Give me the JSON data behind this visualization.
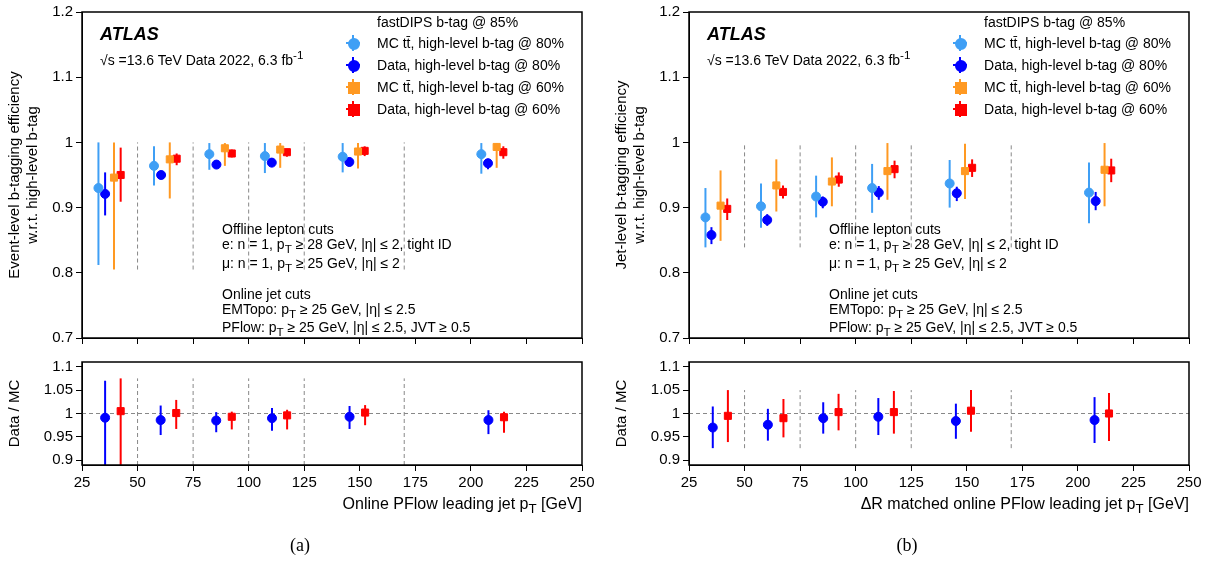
{
  "chart_data": [
    {
      "type": "scatter",
      "ylabel": "Event-level b-tagging efficiency\nw.r.t. high-level b-tag",
      "legend_title": "fastDIPS b-tag @ 85%",
      "legend": "top right",
      "grid": false,
      "tick_labels": "y",
      "xlim": [
        25,
        250
      ],
      "xticks": [
        25,
        50,
        75,
        100,
        125,
        150,
        175,
        200,
        225,
        250
      ],
      "ylim": [
        0.7,
        1.2
      ],
      "yticks": [
        0.7,
        0.8,
        0.9,
        1,
        1.1,
        1.2
      ],
      "annotations": [
        "ATLAS",
        "√s =13.6 TeV Data 2022, 6.3 fb$^{-1}$",
        "Offline lepton cuts",
        "e: n = 1, p$_{T}$ ≥ 28 GeV, |η| ≤ 2, tight ID",
        "μ: n = 1, p$_{T}$ ≥ 25 GeV, |η| ≤ 2",
        "Online jet cuts",
        "EMTopo: p$_{T}$ ≥ 25 GeV, |η| ≤ 2.5",
        "PFlow: p$_{T}$ ≥ 25 GeV, |η| ≤ 2.5, JVT ≥ 0.5"
      ],
      "ref_lines": [
        {
          "axis": "x",
          "value": 50,
          "line_style": "dashed",
          "color": "#888888"
        },
        {
          "axis": "x",
          "value": 75,
          "line_style": "dashed",
          "color": "#888888"
        },
        {
          "axis": "x",
          "value": 100,
          "line_style": "dashed",
          "color": "#888888"
        },
        {
          "axis": "x",
          "value": 125,
          "line_style": "dashed",
          "color": "#888888"
        },
        {
          "axis": "x",
          "value": 170,
          "line_style": "dashed",
          "color": "#888888"
        }
      ],
      "series": [
        {
          "name": "MC tt̄, high-level b-tag @ 80%",
          "color": "#3f9ff5",
          "marker": "circle",
          "x": [
            32.4,
            57.4,
            82.3,
            107.3,
            142.3,
            204.7
          ],
          "values": [
            0.93,
            0.964,
            0.982,
            0.979,
            0.978,
            0.982
          ],
          "errors": [
            [
              0.812,
              1.0
            ],
            [
              0.934,
              0.994
            ],
            [
              0.958,
              0.999
            ],
            [
              0.953,
              0.999
            ],
            [
              0.954,
              0.999
            ],
            [
              0.952,
              0.999
            ]
          ]
        },
        {
          "name": "Data, high-level b-tag @ 80%",
          "color": "#0000ff",
          "marker": "circle",
          "x": [
            35.4,
            60.6,
            85.5,
            110.4,
            145.3,
            207.7
          ],
          "values": [
            0.921,
            0.95,
            0.966,
            0.969,
            0.97,
            0.968
          ],
          "errors": [
            [
              0.888,
              0.954
            ],
            [
              0.944,
              0.955
            ],
            [
              0.961,
              0.971
            ],
            [
              0.962,
              0.975
            ],
            [
              0.963,
              0.977
            ],
            [
              0.959,
              0.975
            ]
          ]
        },
        {
          "name": "MC tt̄, high-level b-tag @ 60%",
          "color": "#ff9922",
          "marker": "square",
          "x": [
            39.4,
            64.5,
            89.3,
            114.2,
            149.2,
            211.6
          ],
          "values": [
            0.946,
            0.974,
            0.991,
            0.989,
            0.986,
            0.993
          ],
          "errors": [
            [
              0.805,
              1.0
            ],
            [
              0.914,
              1.0
            ],
            [
              0.964,
              0.999
            ],
            [
              0.961,
              0.999
            ],
            [
              0.96,
              0.999
            ],
            [
              0.961,
              0.999
            ]
          ]
        },
        {
          "name": "Data, high-level b-tag @ 60%",
          "color": "#ff0000",
          "marker": "square",
          "x": [
            42.4,
            67.6,
            92.4,
            117.2,
            152.2,
            214.6
          ],
          "values": [
            0.95,
            0.975,
            0.983,
            0.985,
            0.987,
            0.985
          ],
          "errors": [
            [
              0.909,
              0.992
            ],
            [
              0.965,
              0.983
            ],
            [
              0.977,
              0.989
            ],
            [
              0.978,
              0.99
            ],
            [
              0.979,
              0.994
            ],
            [
              0.975,
              0.994
            ]
          ]
        }
      ]
    },
    {
      "type": "scatter",
      "ylabel": "Data / MC",
      "xlabel": "Online PFlow leading jet p$_{T}$ [GeV]",
      "grid": false,
      "annotations": [
        "(a)"
      ],
      "xlim": [
        25,
        250
      ],
      "xticks": [
        25,
        50,
        75,
        100,
        125,
        150,
        175,
        200,
        225,
        250
      ],
      "ylim": [
        0.89,
        1.11
      ],
      "yticks": [
        0.9,
        0.95,
        1,
        1.05,
        1.1
      ],
      "ref_lines": [
        {
          "axis": "y",
          "value": 1,
          "line_style": "dashed",
          "color": "#888888"
        },
        {
          "axis": "x",
          "value": 50,
          "line_style": "dashed",
          "color": "#888888"
        },
        {
          "axis": "x",
          "value": 75,
          "line_style": "dashed",
          "color": "#888888"
        },
        {
          "axis": "x",
          "value": 100,
          "line_style": "dashed",
          "color": "#888888"
        },
        {
          "axis": "x",
          "value": 125,
          "line_style": "dashed",
          "color": "#888888"
        },
        {
          "axis": "x",
          "value": 170,
          "line_style": "dashed",
          "color": "#888888"
        }
      ],
      "series": [
        {
          "color": "#0000ff",
          "marker": "circle",
          "x": [
            35.4,
            60.4,
            85.4,
            110.5,
            145.4,
            207.9
          ],
          "values": [
            0.991,
            0.986,
            0.985,
            0.99,
            0.993,
            0.986
          ],
          "errors": [
            [
              0.89,
              1.07
            ],
            [
              0.954,
              1.017
            ],
            [
              0.96,
              1.003
            ],
            [
              0.963,
              1.012
            ],
            [
              0.967,
              1.016
            ],
            [
              0.956,
              1.007
            ]
          ]
        },
        {
          "color": "#ff0000",
          "marker": "square",
          "x": [
            42.4,
            67.4,
            92.4,
            117.3,
            152.4,
            214.9
          ],
          "values": [
            1.005,
            1.001,
            0.993,
            0.996,
            1.002,
            0.992
          ],
          "errors": [
            [
              0.89,
              1.075
            ],
            [
              0.967,
              1.029
            ],
            [
              0.966,
              1.004
            ],
            [
              0.966,
              1.008
            ],
            [
              0.975,
              1.018
            ],
            [
              0.959,
              1.004
            ]
          ]
        }
      ]
    },
    {
      "type": "scatter",
      "ylabel": "Jet-level b-tagging efficiency\nw.r.t. high-level b-tag",
      "legend_title": "fastDIPS b-tag @ 85%",
      "legend": "top right",
      "grid": false,
      "tick_labels": "y",
      "xlim": [
        25,
        250
      ],
      "xticks": [
        25,
        50,
        75,
        100,
        125,
        150,
        175,
        200,
        225,
        250
      ],
      "ylim": [
        0.7,
        1.2
      ],
      "yticks": [
        0.7,
        0.8,
        0.9,
        1,
        1.1,
        1.2
      ],
      "annotations": [
        "ATLAS",
        "√s =13.6 TeV Data 2022, 6.3 fb$^{-1}$",
        "Offline lepton cuts",
        "e: n = 1, p$_{T}$ ≥ 28 GeV, |η| ≤ 2, tight ID",
        "μ: n = 1, p$_{T}$ ≥ 25 GeV, |η| ≤ 2",
        "Online jet cuts",
        "EMTopo: p$_{T}$ ≥ 25 GeV, |η| ≤ 2.5",
        "PFlow: p$_{T}$ ≥ 25 GeV, |η| ≤ 2.5, JVT ≥ 0.5"
      ],
      "ref_lines": [
        {
          "axis": "x",
          "value": 50,
          "line_style": "dashed",
          "color": "#888888"
        },
        {
          "axis": "x",
          "value": 75,
          "line_style": "dashed",
          "color": "#888888"
        },
        {
          "axis": "x",
          "value": 100,
          "line_style": "dashed",
          "color": "#888888"
        },
        {
          "axis": "x",
          "value": 125,
          "line_style": "dashed",
          "color": "#888888"
        },
        {
          "axis": "x",
          "value": 170,
          "line_style": "dashed",
          "color": "#888888"
        }
      ],
      "series": [
        {
          "name": "MC tt̄, high-level b-tag @ 80%",
          "color": "#3f9ff5",
          "marker": "circle",
          "x": [
            32.4,
            57.4,
            82.2,
            107.4,
            142.3,
            205.0
          ],
          "values": [
            0.885,
            0.902,
            0.917,
            0.93,
            0.937,
            0.923
          ],
          "errors": [
            [
              0.839,
              0.93
            ],
            [
              0.869,
              0.937
            ],
            [
              0.885,
              0.949
            ],
            [
              0.892,
              0.967
            ],
            [
              0.9,
              0.973
            ],
            [
              0.876,
              0.969
            ]
          ]
        },
        {
          "name": "Data, high-level b-tag @ 80%",
          "color": "#0000ff",
          "marker": "circle",
          "x": [
            35.1,
            60.2,
            85.2,
            110.4,
            145.5,
            208.0
          ],
          "values": [
            0.858,
            0.881,
            0.909,
            0.923,
            0.922,
            0.91
          ],
          "errors": [
            [
              0.844,
              0.87
            ],
            [
              0.872,
              0.89
            ],
            [
              0.899,
              0.917
            ],
            [
              0.912,
              0.933
            ],
            [
              0.91,
              0.932
            ],
            [
              0.896,
              0.924
            ]
          ]
        },
        {
          "name": "MC tt̄, high-level b-tag @ 60%",
          "color": "#ff9922",
          "marker": "square",
          "x": [
            39.2,
            64.3,
            89.3,
            114.3,
            149.2,
            212.0
          ],
          "values": [
            0.903,
            0.934,
            0.94,
            0.956,
            0.956,
            0.958
          ],
          "errors": [
            [
              0.849,
              0.957
            ],
            [
              0.894,
              0.974
            ],
            [
              0.902,
              0.977
            ],
            [
              0.912,
              0.999
            ],
            [
              0.913,
              0.998
            ],
            [
              0.902,
              0.999
            ]
          ]
        },
        {
          "name": "Data, high-level b-tag @ 60%",
          "color": "#ff0000",
          "marker": "square",
          "x": [
            42.2,
            67.3,
            92.4,
            117.5,
            152.4,
            215.0
          ],
          "values": [
            0.898,
            0.924,
            0.943,
            0.959,
            0.961,
            0.957
          ],
          "errors": [
            [
              0.881,
              0.914
            ],
            [
              0.914,
              0.934
            ],
            [
              0.932,
              0.954
            ],
            [
              0.945,
              0.972
            ],
            [
              0.947,
              0.974
            ],
            [
              0.939,
              0.975
            ]
          ]
        }
      ]
    },
    {
      "type": "scatter",
      "ylabel": "Data / MC",
      "xlabel": "ΔR matched online PFlow leading jet p$_{T}$ [GeV]",
      "grid": false,
      "annotations": [
        "(b)"
      ],
      "xlim": [
        25,
        250
      ],
      "xticks": [
        25,
        50,
        75,
        100,
        125,
        150,
        175,
        200,
        225,
        250
      ],
      "ylim": [
        0.89,
        1.11
      ],
      "yticks": [
        0.9,
        0.95,
        1,
        1.05,
        1.1
      ],
      "ref_lines": [
        {
          "axis": "y",
          "value": 1,
          "line_style": "dashed",
          "color": "#888888"
        },
        {
          "axis": "x",
          "value": 50,
          "line_style": "dashed",
          "color": "#888888"
        },
        {
          "axis": "x",
          "value": 75,
          "line_style": "dashed",
          "color": "#888888"
        },
        {
          "axis": "x",
          "value": 100,
          "line_style": "dashed",
          "color": "#888888"
        },
        {
          "axis": "x",
          "value": 125,
          "line_style": "dashed",
          "color": "#888888"
        },
        {
          "axis": "x",
          "value": 170,
          "line_style": "dashed",
          "color": "#888888"
        }
      ],
      "series": [
        {
          "color": "#0000ff",
          "marker": "circle",
          "x": [
            35.7,
            60.5,
            85.4,
            110.2,
            145.1,
            207.5
          ],
          "values": [
            0.97,
            0.976,
            0.99,
            0.993,
            0.984,
            0.986
          ],
          "errors": [
            [
              0.926,
              1.015
            ],
            [
              0.942,
              1.01
            ],
            [
              0.957,
              1.024
            ],
            [
              0.954,
              1.033
            ],
            [
              0.946,
              1.021
            ],
            [
              0.937,
              1.035
            ]
          ]
        },
        {
          "color": "#ff0000",
          "marker": "square",
          "x": [
            42.5,
            67.5,
            92.3,
            117.2,
            151.9,
            214.0
          ],
          "values": [
            0.995,
            0.99,
            1.003,
            1.003,
            1.006,
            1.0
          ],
          "errors": [
            [
              0.939,
              1.05
            ],
            [
              0.949,
              1.031
            ],
            [
              0.964,
              1.042
            ],
            [
              0.957,
              1.048
            ],
            [
              0.961,
              1.05
            ],
            [
              0.941,
              1.044
            ]
          ]
        }
      ]
    }
  ]
}
